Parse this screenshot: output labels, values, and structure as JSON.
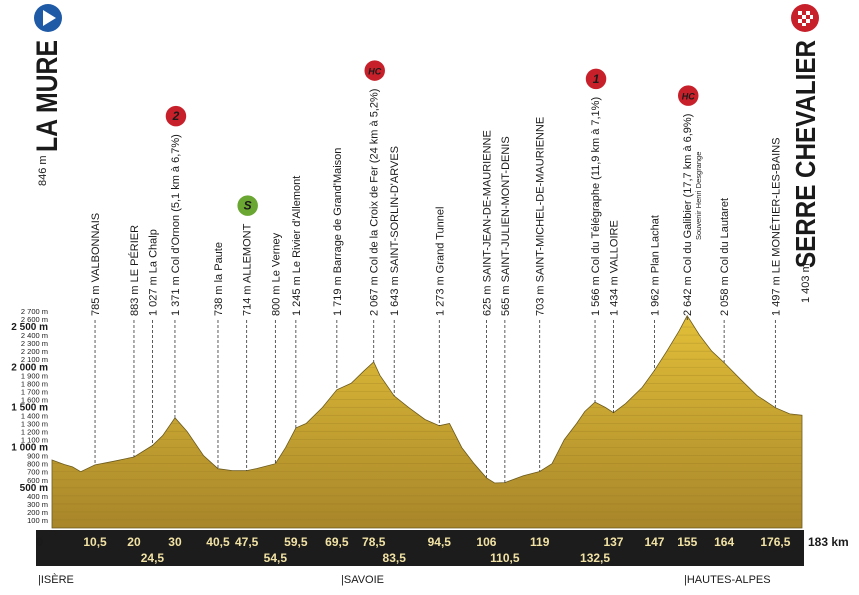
{
  "chart_data": {
    "type": "area",
    "color": "#e2bf38",
    "xlim": [
      0,
      183
    ],
    "ylim": [
      0,
      2700
    ],
    "x": [
      0,
      3,
      5,
      7,
      10.5,
      15,
      20,
      24.5,
      27,
      30,
      33,
      37,
      40.5,
      44,
      47.5,
      50,
      54.5,
      57,
      59.5,
      62,
      66,
      69.5,
      73,
      76,
      78.5,
      80,
      83.5,
      87,
      91,
      94.5,
      97,
      100,
      103,
      106,
      108,
      110.5,
      115,
      119,
      122,
      125,
      128,
      130,
      132.5,
      135,
      137,
      140,
      144,
      147,
      150,
      153,
      155,
      158,
      161,
      164,
      168,
      172,
      176.5,
      180,
      183
    ],
    "values": [
      846,
      790,
      760,
      700,
      785,
      830,
      883,
      1027,
      1150,
      1371,
      1200,
      900,
      738,
      714,
      714,
      740,
      800,
      1000,
      1245,
      1300,
      1500,
      1719,
      1800,
      1950,
      2067,
      1900,
      1643,
      1500,
      1350,
      1273,
      1300,
      1000,
      800,
      625,
      560,
      565,
      650,
      703,
      800,
      1100,
      1300,
      1450,
      1566,
      1500,
      1434,
      1550,
      1750,
      1962,
      2200,
      2450,
      2642,
      2400,
      2200,
      2058,
      1850,
      1650,
      1497,
      1420,
      1403
    ],
    "yticks": [
      {
        "value": 100,
        "label": "100 m"
      },
      {
        "value": 200,
        "label": "200 m"
      },
      {
        "value": 300,
        "label": "300 m"
      },
      {
        "value": 400,
        "label": "400 m"
      },
      {
        "value": 500,
        "label": "500 m"
      },
      {
        "value": 600,
        "label": "600 m"
      },
      {
        "value": 700,
        "label": "700 m"
      },
      {
        "value": 800,
        "label": "800 m"
      },
      {
        "value": 900,
        "label": "900 m"
      },
      {
        "value": 1000,
        "label": "1 000 m"
      },
      {
        "value": 1100,
        "label": "1 100 m"
      },
      {
        "value": 1200,
        "label": "1 200 m"
      },
      {
        "value": 1300,
        "label": "1 300 m"
      },
      {
        "value": 1400,
        "label": "1 400 m"
      },
      {
        "value": 1500,
        "label": "1 500 m"
      },
      {
        "value": 1600,
        "label": "1 600 m"
      },
      {
        "value": 1700,
        "label": "1 700 m"
      },
      {
        "value": 1800,
        "label": "1 800 m"
      },
      {
        "value": 1900,
        "label": "1 900 m"
      },
      {
        "value": 2000,
        "label": "2 000 m"
      },
      {
        "value": 2100,
        "label": "2 100 m"
      },
      {
        "value": 2200,
        "label": "2 200 m"
      },
      {
        "value": 2300,
        "label": "2 300 m"
      },
      {
        "value": 2400,
        "label": "2 400 m"
      },
      {
        "value": 2500,
        "label": "2 500 m"
      },
      {
        "value": 2600,
        "label": "2 600 m"
      },
      {
        "value": 2700,
        "label": "2 700 m"
      }
    ],
    "xticks": [
      0,
      {
        "value": 10.5,
        "label": "10,5"
      },
      20,
      {
        "value": 24.5,
        "label": "24,5"
      },
      30,
      {
        "value": 40.5,
        "label": "40,5"
      },
      {
        "value": 47.5,
        "label": "47,5"
      },
      {
        "value": 54.5,
        "label": "54,5"
      },
      {
        "value": 59.5,
        "label": "59,5"
      },
      {
        "value": 69.5,
        "label": "69,5"
      },
      {
        "value": 78.5,
        "label": "78,5"
      },
      {
        "value": 83.5,
        "label": "83,5"
      },
      {
        "value": 94.5,
        "label": "94,5"
      },
      106,
      {
        "value": 110.5,
        "label": "110,5"
      },
      119,
      {
        "value": 132.5,
        "label": "132,5"
      },
      137,
      147,
      155,
      164,
      {
        "value": 176.5,
        "label": "176,5"
      },
      {
        "value": 183,
        "label": "183 km"
      }
    ],
    "start": {
      "elevation": "846 m",
      "name": "LA MURE"
    },
    "finish": {
      "elevation": "1 403 m",
      "name": "SERRE CHEVALIER"
    },
    "waypoints": [
      {
        "km": 10.5,
        "label": "785 m VALBONNAIS"
      },
      {
        "km": 20,
        "label": "883 m LE PÉRIER"
      },
      {
        "km": 24.5,
        "label": "1 027 m La Chalp"
      },
      {
        "km": 30,
        "label": "1 371 m Col d'Ornon (5,1 km à 6,7%)",
        "badge": "2"
      },
      {
        "km": 40.5,
        "label": "738 m la Paute"
      },
      {
        "km": 47.5,
        "label": "714 m ALLEMONT",
        "badge": "S"
      },
      {
        "km": 54.5,
        "label": "800 m Le Verney"
      },
      {
        "km": 59.5,
        "label": "1 245 m Le Rivier d'Allemont"
      },
      {
        "km": 69.5,
        "label": "1 719 m Barrage de Grand'Maison"
      },
      {
        "km": 78.5,
        "label": "2 067 m Col de la Croix de Fer (24 km à 5,2%)",
        "badge": "HC"
      },
      {
        "km": 83.5,
        "label": "1 643 m SAINT-SORLIN-D'ARVES"
      },
      {
        "km": 94.5,
        "label": "1 273 m Grand Tunnel"
      },
      {
        "km": 106,
        "label": "625 m SAINT-JEAN-DE-MAURIENNE"
      },
      {
        "km": 110.5,
        "label": "565 m SAINT-JULIEN-MONT-DENIS"
      },
      {
        "km": 119,
        "label": "703 m SAINT-MICHEL-DE-MAURIENNE"
      },
      {
        "km": 132.5,
        "label": "1 566 m Col du Télégraphe (11,9 km à 7,1%)",
        "badge": "1"
      },
      {
        "km": 137,
        "label": "1 434 m VALLOIRE"
      },
      {
        "km": 147,
        "label": "1 962 m Plan Lachat"
      },
      {
        "km": 155,
        "label": "2 642 m Col du Galibier (17,7 km à 6,9%)",
        "badge": "HC",
        "note": "Souvenir Henri Desgrange"
      },
      {
        "km": 164,
        "label": "2 058 m Col du Lautaret"
      },
      {
        "km": 176.5,
        "label": "1 497 m LE MONÊTIER-LES-BAINS"
      }
    ],
    "regions": [
      "|ISÈRE",
      "|SAVOIE",
      "|HAUTES-ALPES"
    ]
  }
}
